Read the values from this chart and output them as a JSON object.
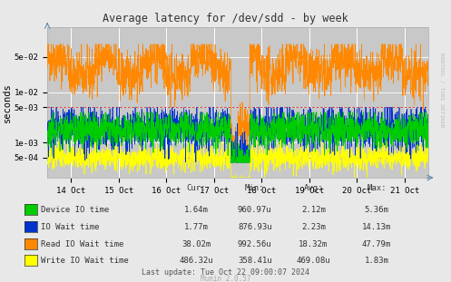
{
  "title": "Average latency for /dev/sdd - by week",
  "ylabel": "seconds",
  "background_color": "#e8e8e8",
  "plot_background_color": "#c8c8c8",
  "grid_color": "#ffffff",
  "x_ticks_labels": [
    "14 Oct",
    "15 Oct",
    "16 Oct",
    "17 Oct",
    "18 Oct",
    "19 Oct",
    "20 Oct",
    "21 Oct"
  ],
  "ylim_log_min": 0.0002,
  "ylim_log_max": 0.2,
  "yticks": [
    0.0005,
    0.001,
    0.005,
    0.01,
    0.05
  ],
  "ytick_labels": [
    "5e-04",
    "1e-03",
    "5e-03",
    "1e-02",
    "5e-02"
  ],
  "hlines": [
    0.005,
    0.0005
  ],
  "legend_entries": [
    {
      "label": "Device IO time",
      "color": "#00cc00"
    },
    {
      "label": "IO Wait time",
      "color": "#0033cc"
    },
    {
      "label": "Read IO Wait time",
      "color": "#ff8800"
    },
    {
      "label": "Write IO Wait time",
      "color": "#ffff00"
    }
  ],
  "stats": {
    "headers": [
      "Cur:",
      "Min:",
      "Avg:",
      "Max:"
    ],
    "rows": [
      [
        "Device IO time",
        "1.64m",
        "960.97u",
        "2.12m",
        "5.36m"
      ],
      [
        "IO Wait time",
        "1.77m",
        "876.93u",
        "2.23m",
        "14.13m"
      ],
      [
        "Read IO Wait time",
        "38.02m",
        "992.56u",
        "18.32m",
        "47.79m"
      ],
      [
        "Write IO Wait time",
        "486.32u",
        "358.41u",
        "469.08u",
        "1.83m"
      ]
    ],
    "last_update": "Last update: Tue Oct 22 09:00:07 2024"
  },
  "watermark": "Munin 2.0.57",
  "rrdtool_text": "RRDTOOL / TOBI OETIKER"
}
